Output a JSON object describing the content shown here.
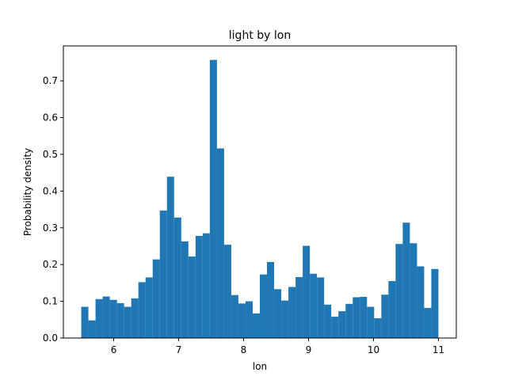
{
  "chart_data": {
    "type": "bar",
    "title": "light by lon",
    "xlabel": "lon",
    "ylabel": "Probability density",
    "xlim": [
      5.225,
      11.275
    ],
    "ylim": [
      0,
      0.795
    ],
    "xticks": [
      6,
      7,
      8,
      9,
      10,
      11
    ],
    "yticks": [
      0.0,
      0.1,
      0.2,
      0.3,
      0.4,
      0.5,
      0.6,
      0.7
    ],
    "ytick_labels": [
      "0.0",
      "0.1",
      "0.2",
      "0.3",
      "0.4",
      "0.5",
      "0.6",
      "0.7"
    ],
    "bar_color": "#1f77b4",
    "bins_start": 5.5,
    "bin_width": 0.11,
    "values": [
      0.085,
      0.048,
      0.106,
      0.113,
      0.104,
      0.095,
      0.085,
      0.108,
      0.152,
      0.165,
      0.214,
      0.347,
      0.439,
      0.328,
      0.263,
      0.222,
      0.278,
      0.285,
      0.757,
      0.516,
      0.254,
      0.117,
      0.094,
      0.1,
      0.067,
      0.173,
      0.207,
      0.133,
      0.102,
      0.139,
      0.166,
      0.251,
      0.175,
      0.165,
      0.091,
      0.058,
      0.073,
      0.093,
      0.111,
      0.112,
      0.085,
      0.054,
      0.118,
      0.155,
      0.256,
      0.314,
      0.258,
      0.195,
      0.082,
      0.188
    ]
  }
}
